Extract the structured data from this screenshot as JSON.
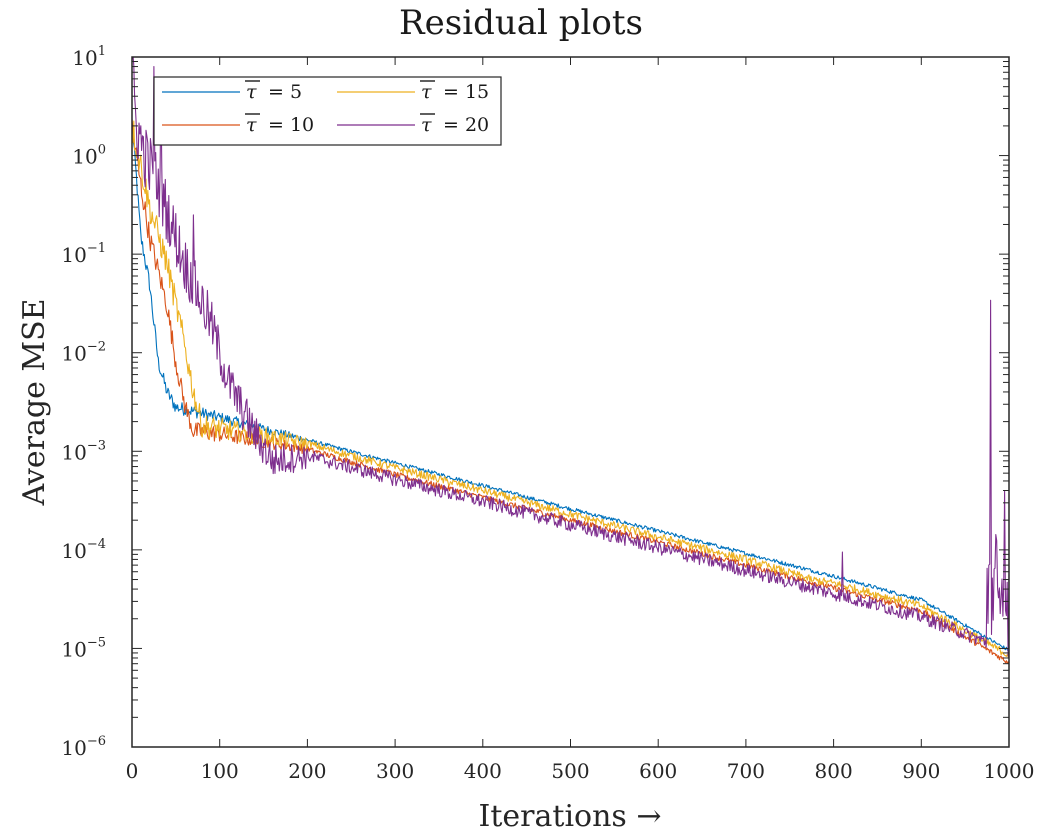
{
  "chart_data": {
    "type": "line",
    "title": "Residual plots",
    "xlabel": "Iterations →",
    "ylabel": "Average MSE",
    "xscale": "linear",
    "yscale": "log",
    "xlim": [
      0,
      1000
    ],
    "ylim": [
      1e-06,
      10
    ],
    "grid": false,
    "legend_location": "top-left",
    "legend_columns": 2,
    "x_ticks": [
      0,
      100,
      200,
      300,
      400,
      500,
      600,
      700,
      800,
      900,
      1000
    ],
    "x_tick_labels": [
      "0",
      "100",
      "200",
      "300",
      "400",
      "500",
      "600",
      "700",
      "800",
      "900",
      "1000"
    ],
    "y_ticks": [
      {
        "value": 10,
        "base": "10",
        "exp": "1"
      },
      {
        "value": 1,
        "base": "10",
        "exp": "0"
      },
      {
        "value": 0.1,
        "base": "10",
        "exp": "−1"
      },
      {
        "value": 0.01,
        "base": "10",
        "exp": "−2"
      },
      {
        "value": 0.001,
        "base": "10",
        "exp": "−3"
      },
      {
        "value": 0.0001,
        "base": "10",
        "exp": "−4"
      },
      {
        "value": 1e-05,
        "base": "10",
        "exp": "−5"
      },
      {
        "value": 1e-06,
        "base": "10",
        "exp": "−6"
      }
    ],
    "series": [
      {
        "name": "τ̅ = 5",
        "legend_symbol": "τ",
        "legend_value": "= 5",
        "color": "#0072BD",
        "noise_decades": 0.02,
        "anchors": [
          [
            0,
            2.0
          ],
          [
            5,
            0.6
          ],
          [
            10,
            0.15
          ],
          [
            20,
            0.05
          ],
          [
            30,
            0.008
          ],
          [
            40,
            0.004
          ],
          [
            50,
            0.0028
          ],
          [
            100,
            0.0022
          ],
          [
            200,
            0.0013
          ],
          [
            300,
            0.00076
          ],
          [
            400,
            0.00045
          ],
          [
            500,
            0.00026
          ],
          [
            600,
            0.000155
          ],
          [
            700,
            9.2e-05
          ],
          [
            800,
            5.4e-05
          ],
          [
            900,
            3.1e-05
          ],
          [
            1000,
            9.5e-06
          ]
        ]
      },
      {
        "name": "τ̅ = 10",
        "legend_symbol": "τ",
        "legend_value": "= 10",
        "color": "#D95319",
        "noise_decades": 0.03,
        "anchors": [
          [
            0,
            2.0
          ],
          [
            10,
            0.5
          ],
          [
            20,
            0.15
          ],
          [
            40,
            0.03
          ],
          [
            50,
            0.008
          ],
          [
            60,
            0.003
          ],
          [
            70,
            0.0016
          ],
          [
            100,
            0.0015
          ],
          [
            200,
            0.00105
          ],
          [
            300,
            0.00058
          ],
          [
            400,
            0.00034
          ],
          [
            500,
            0.0002
          ],
          [
            600,
            0.00012
          ],
          [
            700,
            7e-05
          ],
          [
            800,
            4.1e-05
          ],
          [
            900,
            2.4e-05
          ],
          [
            1000,
            7.2e-06
          ]
        ]
      },
      {
        "name": "τ̅ = 15",
        "legend_symbol": "τ",
        "legend_value": "= 15",
        "color": "#EDB120",
        "noise_decades": 0.04,
        "anchors": [
          [
            0,
            2.0
          ],
          [
            10,
            0.8
          ],
          [
            20,
            0.3
          ],
          [
            40,
            0.08
          ],
          [
            60,
            0.012
          ],
          [
            70,
            0.004
          ],
          [
            80,
            0.0018
          ],
          [
            100,
            0.0017
          ],
          [
            200,
            0.0012
          ],
          [
            300,
            0.00068
          ],
          [
            400,
            0.0004
          ],
          [
            500,
            0.00023
          ],
          [
            600,
            0.000135
          ],
          [
            700,
            8e-05
          ],
          [
            775,
            5e-05
          ],
          [
            800,
            4.6e-05
          ],
          [
            900,
            2.7e-05
          ],
          [
            1000,
            8.5e-06
          ]
        ]
      },
      {
        "name": "τ̅ = 20",
        "legend_symbol": "τ",
        "legend_value": "= 20",
        "color": "#7E2F8E",
        "noise_decades": 0.07,
        "anchors": [
          [
            0,
            7.0
          ],
          [
            5,
            2.0
          ],
          [
            15,
            1.0
          ],
          [
            30,
            0.5
          ],
          [
            60,
            0.08
          ],
          [
            90,
            0.02
          ],
          [
            110,
            0.005
          ],
          [
            140,
            0.0015
          ],
          [
            160,
            0.0008
          ],
          [
            200,
            0.0009
          ],
          [
            300,
            0.00052
          ],
          [
            400,
            0.00031
          ],
          [
            500,
            0.00018
          ],
          [
            600,
            0.000105
          ],
          [
            700,
            6.2e-05
          ],
          [
            800,
            3.6e-05
          ],
          [
            900,
            2.1e-05
          ],
          [
            970,
            1.2e-05
          ],
          [
            1000,
            7.5e-06
          ]
        ]
      }
    ],
    "spikes": [
      {
        "series": 3,
        "x": 25,
        "y": 8.0
      },
      {
        "series": 3,
        "x": 33,
        "y": 5.0
      },
      {
        "series": 3,
        "x": 70,
        "y": 0.25
      },
      {
        "series": 2,
        "x": 775,
        "y": 4.8e-05
      },
      {
        "series": 3,
        "x": 810,
        "y": 9.5e-05
      },
      {
        "series": 3,
        "x": 979,
        "y": 0.034
      },
      {
        "series": 3,
        "x": 995,
        "y": 0.0004
      }
    ]
  }
}
